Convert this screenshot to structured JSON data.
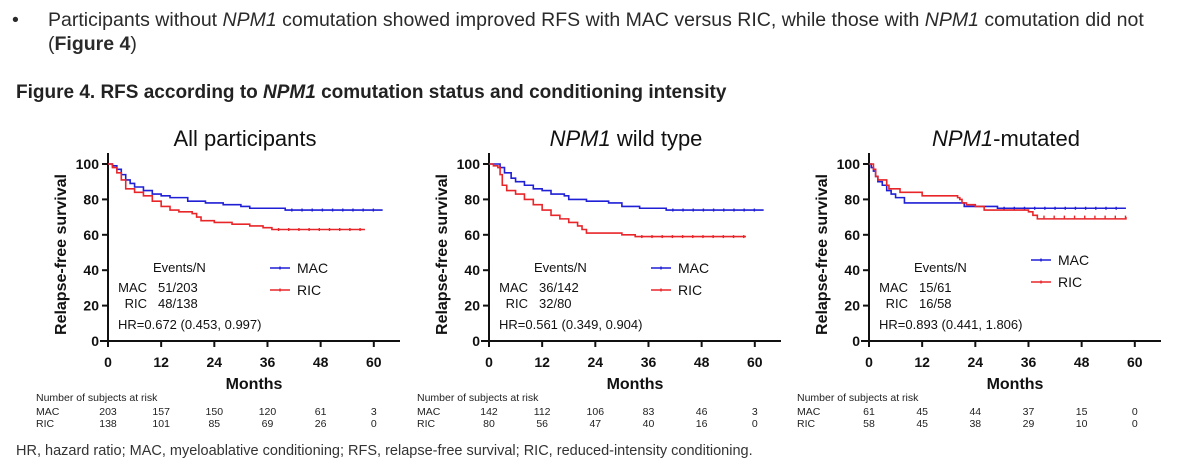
{
  "bullet": {
    "symbol": "•",
    "parts": [
      {
        "t": "Participants without ",
        "s": "n"
      },
      {
        "t": "NPM1",
        "s": "i"
      },
      {
        "t": " comutation showed improved RFS with MAC versus RIC, while those with ",
        "s": "n"
      },
      {
        "t": "NPM1",
        "s": "i"
      },
      {
        "t": " comutation did not (",
        "s": "n"
      },
      {
        "t": "Figure 4",
        "s": "b"
      },
      {
        "t": ")",
        "s": "n"
      }
    ]
  },
  "figure_title": {
    "parts": [
      {
        "t": "Figure 4. RFS according to ",
        "s": "n"
      },
      {
        "t": "NPM1",
        "s": "i"
      },
      {
        "t": " comutation status and conditioning intensity",
        "s": "n"
      }
    ]
  },
  "footnote": "HR, hazard ratio; MAC, myeloablative conditioning; RFS, relapse-free survival; RIC, reduced-intensity conditioning.",
  "colors": {
    "MAC": "#1f1fd6",
    "RIC": "#e8262a",
    "axis": "#111111"
  },
  "chart_data": [
    {
      "type": "line",
      "subtype": "kaplan-meier",
      "title": "All participants",
      "title_parts": [
        {
          "t": "All participants",
          "s": "n"
        }
      ],
      "xlabel": "Months",
      "ylabel": "Relapse-free survival",
      "xlim": [
        0,
        60
      ],
      "ylim": [
        0,
        100
      ],
      "xticks": [
        0,
        12,
        24,
        36,
        48,
        60
      ],
      "yticks": [
        0,
        20,
        40,
        60,
        80,
        100
      ],
      "legend": [
        "MAC",
        "RIC"
      ],
      "legend_placement": "middle-right",
      "events_header": "Events/N",
      "events": [
        {
          "group": "MAC",
          "value": "51/203"
        },
        {
          "group": "RIC",
          "value": "48/138"
        }
      ],
      "hr": "HR=0.672 (0.453, 0.997)",
      "series": [
        {
          "name": "MAC",
          "points": [
            [
              0,
              100
            ],
            [
              1,
              99
            ],
            [
              2,
              97
            ],
            [
              3,
              94
            ],
            [
              4,
              91
            ],
            [
              5,
              89
            ],
            [
              6,
              87
            ],
            [
              8,
              85
            ],
            [
              10,
              83
            ],
            [
              12,
              82
            ],
            [
              14,
              81
            ],
            [
              17,
              81
            ],
            [
              18,
              79
            ],
            [
              22,
              78
            ],
            [
              26,
              77
            ],
            [
              30,
              76
            ],
            [
              32,
              75
            ],
            [
              36,
              75
            ],
            [
              40,
              74
            ],
            [
              62,
              74
            ]
          ]
        },
        {
          "name": "RIC",
          "points": [
            [
              0,
              100
            ],
            [
              1,
              98
            ],
            [
              2,
              95
            ],
            [
              3,
              91
            ],
            [
              4,
              86
            ],
            [
              6,
              84
            ],
            [
              8,
              82
            ],
            [
              10,
              79
            ],
            [
              12,
              76
            ],
            [
              14,
              74
            ],
            [
              16,
              73
            ],
            [
              19,
              72
            ],
            [
              20,
              70
            ],
            [
              21,
              68
            ],
            [
              24,
              67
            ],
            [
              28,
              66
            ],
            [
              32,
              65
            ],
            [
              35,
              64
            ],
            [
              37,
              63
            ],
            [
              58,
              63
            ]
          ]
        }
      ],
      "at_risk": {
        "header": "Number of subjects at risk",
        "rows": [
          {
            "group": "MAC",
            "values": [
              "203",
              "157",
              "150",
              "120",
              "61",
              "3"
            ]
          },
          {
            "group": "RIC",
            "values": [
              "138",
              "101",
              "85",
              "69",
              "26",
              "0"
            ]
          }
        ]
      }
    },
    {
      "type": "line",
      "subtype": "kaplan-meier",
      "title": "NPM1 wild type",
      "title_parts": [
        {
          "t": "NPM1",
          "s": "i"
        },
        {
          "t": " wild type",
          "s": "n"
        }
      ],
      "xlabel": "Months",
      "ylabel": "Relapse-free survival",
      "xlim": [
        0,
        60
      ],
      "ylim": [
        0,
        100
      ],
      "xticks": [
        0,
        12,
        24,
        36,
        48,
        60
      ],
      "yticks": [
        0,
        20,
        40,
        60,
        80,
        100
      ],
      "legend": [
        "MAC",
        "RIC"
      ],
      "legend_placement": "middle-right",
      "events_header": "Events/N",
      "events": [
        {
          "group": "MAC",
          "value": "36/142"
        },
        {
          "group": "RIC",
          "value": "32/80"
        }
      ],
      "hr": "HR=0.561 (0.349, 0.904)",
      "series": [
        {
          "name": "MAC",
          "points": [
            [
              0,
              100
            ],
            [
              1.5,
              100
            ],
            [
              2.5,
              98
            ],
            [
              3.5,
              95
            ],
            [
              5,
              92
            ],
            [
              6,
              90
            ],
            [
              8,
              88
            ],
            [
              10,
              86
            ],
            [
              12,
              85
            ],
            [
              14,
              83
            ],
            [
              17,
              82
            ],
            [
              18,
              80
            ],
            [
              22,
              79
            ],
            [
              27,
              78
            ],
            [
              30,
              76
            ],
            [
              34,
              75
            ],
            [
              40,
              74
            ],
            [
              62,
              74
            ]
          ]
        },
        {
          "name": "RIC",
          "points": [
            [
              0,
              100
            ],
            [
              1,
              99
            ],
            [
              2,
              98
            ],
            [
              2.5,
              94
            ],
            [
              3,
              88
            ],
            [
              4,
              85
            ],
            [
              6,
              83
            ],
            [
              8,
              80
            ],
            [
              10,
              77
            ],
            [
              12,
              74
            ],
            [
              14,
              71
            ],
            [
              16,
              69
            ],
            [
              18,
              67
            ],
            [
              20,
              65
            ],
            [
              21,
              63
            ],
            [
              22,
              61
            ],
            [
              30,
              60
            ],
            [
              33,
              59
            ],
            [
              58,
              59
            ]
          ]
        }
      ],
      "at_risk": {
        "header": "Number of subjects at risk",
        "rows": [
          {
            "group": "MAC",
            "values": [
              "142",
              "112",
              "106",
              "83",
              "46",
              "3"
            ]
          },
          {
            "group": "RIC",
            "values": [
              "80",
              "56",
              "47",
              "40",
              "16",
              "0"
            ]
          }
        ]
      }
    },
    {
      "type": "line",
      "subtype": "kaplan-meier",
      "title": "NPM1-mutated",
      "title_parts": [
        {
          "t": "NPM1",
          "s": "i"
        },
        {
          "t": "-mutated",
          "s": "n"
        }
      ],
      "xlabel": "Months",
      "ylabel": "Relapse-free survival",
      "xlim": [
        0,
        60
      ],
      "ylim": [
        0,
        100
      ],
      "xticks": [
        0,
        12,
        24,
        36,
        48,
        60
      ],
      "yticks": [
        0,
        20,
        40,
        60,
        80,
        100
      ],
      "legend": [
        "MAC",
        "RIC"
      ],
      "legend_placement": "middle-right",
      "events_header": "Events/N",
      "events": [
        {
          "group": "MAC",
          "value": "15/61"
        },
        {
          "group": "RIC",
          "value": "16/58"
        }
      ],
      "hr": "HR=0.893 (0.441, 1.806)",
      "series": [
        {
          "name": "MAC",
          "points": [
            [
              0,
              100
            ],
            [
              0.5,
              98
            ],
            [
              1,
              96
            ],
            [
              1.5,
              93
            ],
            [
              2,
              90
            ],
            [
              3,
              88
            ],
            [
              4,
              85
            ],
            [
              5,
              83
            ],
            [
              6,
              81
            ],
            [
              8,
              78
            ],
            [
              21,
              78
            ],
            [
              21.5,
              76
            ],
            [
              29,
              75
            ],
            [
              58,
              75
            ]
          ]
        },
        {
          "name": "RIC",
          "points": [
            [
              0,
              100
            ],
            [
              1,
              97
            ],
            [
              1.5,
              93
            ],
            [
              2,
              91
            ],
            [
              4,
              88
            ],
            [
              4.5,
              86
            ],
            [
              7,
              84
            ],
            [
              12,
              82
            ],
            [
              20,
              81
            ],
            [
              20.5,
              80
            ],
            [
              21,
              78
            ],
            [
              22,
              77
            ],
            [
              24,
              76
            ],
            [
              26,
              74
            ],
            [
              36,
              73
            ],
            [
              37,
              71
            ],
            [
              38,
              69
            ],
            [
              58,
              70
            ]
          ]
        }
      ],
      "at_risk": {
        "header": "Number of subjects at risk",
        "rows": [
          {
            "group": "MAC",
            "values": [
              "61",
              "45",
              "44",
              "37",
              "15",
              "0"
            ]
          },
          {
            "group": "RIC",
            "values": [
              "58",
              "45",
              "38",
              "29",
              "10",
              "0"
            ]
          }
        ]
      }
    }
  ]
}
